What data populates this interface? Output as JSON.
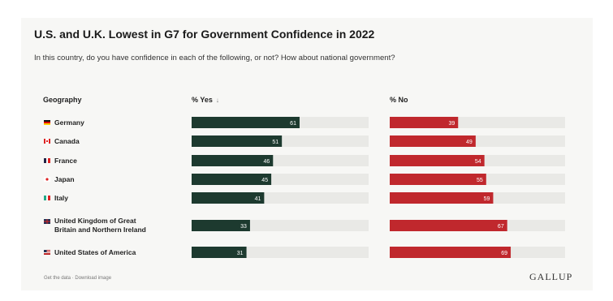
{
  "title": "U.S. and U.K. Lowest in G7 for Government Confidence in 2022",
  "subtitle": "In this country, do you have confidence in each of the following, or not? How about national government?",
  "columns": {
    "geography": "Geography",
    "yes": "% Yes",
    "no": "% No"
  },
  "footer_text": "Get the data · Download image",
  "logo_text": "GALLUP",
  "colors": {
    "yes": "#1d3a2f",
    "no": "#c0282d",
    "track": "#e9e9e6",
    "card": "#f7f7f5"
  },
  "chart_data": {
    "type": "bar",
    "title": "U.S. and U.K. Lowest in G7 for Government Confidence in 2022",
    "categories": [
      "Germany",
      "Canada",
      "France",
      "Japan",
      "Italy",
      "United Kingdom of Great Britain and Northern Ireland",
      "United States of America"
    ],
    "category_display": [
      [
        "Germany"
      ],
      [
        "Canada"
      ],
      [
        "France"
      ],
      [
        "Japan"
      ],
      [
        "Italy"
      ],
      [
        "United Kingdom of Great",
        "Britain and Northern Ireland"
      ],
      [
        "United States of America"
      ]
    ],
    "flag_icons": [
      "flag-germany-icon",
      "flag-canada-icon",
      "flag-france-icon",
      "flag-japan-icon",
      "flag-italy-icon",
      "flag-uk-icon",
      "flag-usa-icon"
    ],
    "series": [
      {
        "name": "% Yes",
        "values": [
          61,
          51,
          46,
          45,
          41,
          33,
          31
        ]
      },
      {
        "name": "% No",
        "values": [
          39,
          49,
          54,
          55,
          59,
          67,
          69
        ]
      }
    ],
    "ylim": [
      0,
      100
    ],
    "legend": "none"
  }
}
